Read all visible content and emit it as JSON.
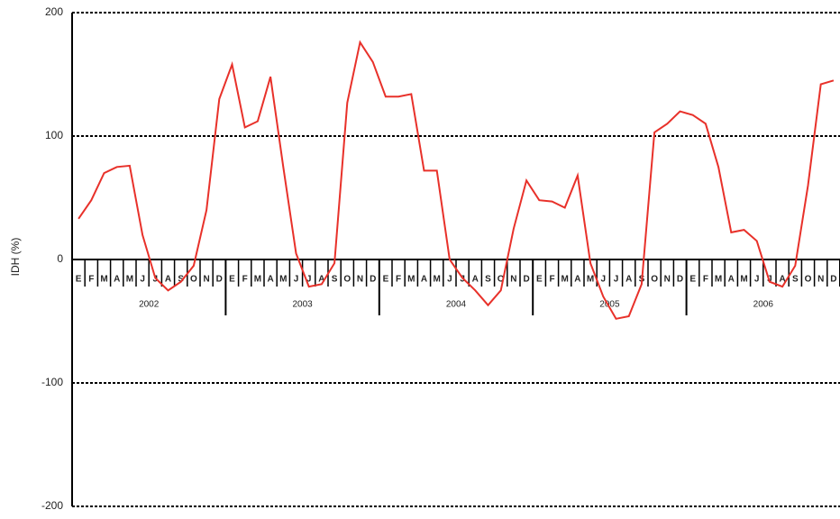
{
  "chart_data": {
    "type": "line",
    "y_label": "IDH (%)",
    "categories": [
      "E",
      "F",
      "M",
      "A",
      "M",
      "J",
      "J",
      "A",
      "S",
      "O",
      "N",
      "D",
      "E",
      "F",
      "M",
      "A",
      "M",
      "J",
      "J",
      "A",
      "S",
      "O",
      "N",
      "D",
      "E",
      "F",
      "M",
      "A",
      "M",
      "J",
      "J",
      "A",
      "S",
      "O",
      "N",
      "D",
      "E",
      "F",
      "M",
      "A",
      "M",
      "J",
      "J",
      "A",
      "S",
      "O",
      "N",
      "D",
      "E",
      "F",
      "M",
      "A",
      "M",
      "J",
      "J",
      "A",
      "S",
      "O",
      "N",
      "D"
    ],
    "years": [
      "2002",
      "2003",
      "2004",
      "2005",
      "2006"
    ],
    "values": [
      33,
      48,
      70,
      75,
      76,
      20,
      -15,
      -25,
      -18,
      -5,
      40,
      130,
      158,
      107,
      112,
      148,
      75,
      5,
      -22,
      -20,
      -3,
      127,
      176,
      160,
      132,
      132,
      134,
      72,
      72,
      0,
      -15,
      -25,
      -37,
      -25,
      25,
      64,
      48,
      47,
      42,
      68,
      -3,
      -30,
      -48,
      -46,
      -20,
      103,
      110,
      120,
      117,
      110,
      75,
      22,
      24,
      15,
      -18,
      -22,
      -5,
      60,
      142,
      145
    ],
    "color": "#e8312a",
    "ylim": [
      -200,
      200
    ],
    "yticks": [
      -200,
      -100,
      0,
      100,
      200
    ],
    "grid": true
  }
}
